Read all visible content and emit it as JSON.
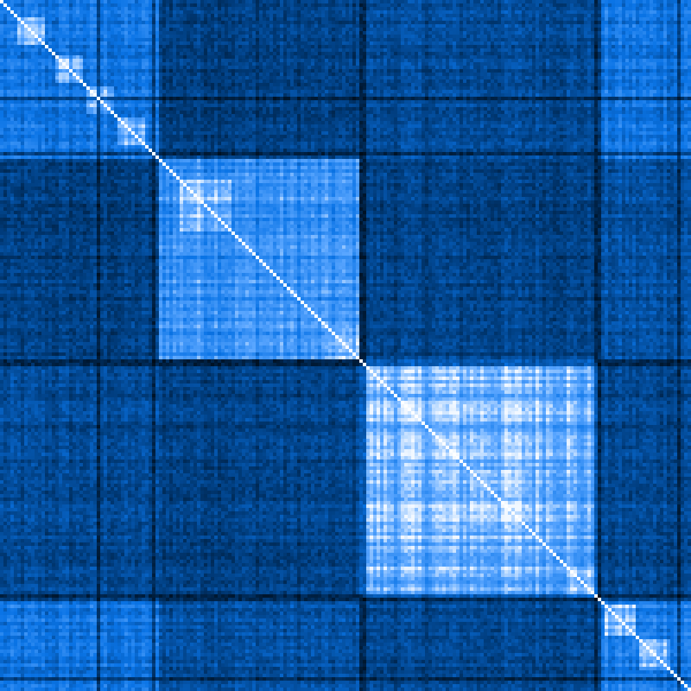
{
  "chart_data": {
    "type": "heatmap",
    "title": "",
    "xlabel": "",
    "ylabel": "",
    "symmetric": true,
    "grid": false,
    "legend": "none",
    "value_range": [
      0,
      1
    ],
    "colorscale": [
      "#000000",
      "#003a78",
      "#0a74e6",
      "#5aa6ff",
      "#ffffff"
    ],
    "n": 200,
    "clusters": [
      {
        "start": 0,
        "end": 46,
        "within": 0.55
      },
      {
        "start": 46,
        "end": 104,
        "within": 0.72
      },
      {
        "start": 104,
        "end": 173,
        "within": 0.82
      },
      {
        "start": 173,
        "end": 200,
        "within": 0.6
      }
    ],
    "between": [
      [
        0.55,
        0.3,
        0.35,
        0.55
      ],
      [
        0.3,
        0.72,
        0.32,
        0.38
      ],
      [
        0.35,
        0.32,
        0.82,
        0.34
      ],
      [
        0.55,
        0.38,
        0.34,
        0.6
      ]
    ],
    "sub_blocks": [
      {
        "start": 5,
        "end": 13,
        "value": 0.85
      },
      {
        "start": 16,
        "end": 24,
        "value": 0.85
      },
      {
        "start": 25,
        "end": 33,
        "value": 0.82
      },
      {
        "start": 34,
        "end": 42,
        "value": 0.82
      },
      {
        "start": 52,
        "end": 67,
        "value": 0.95
      },
      {
        "start": 95,
        "end": 104,
        "value": 0.85
      },
      {
        "start": 106,
        "end": 165,
        "value": 0.9
      },
      {
        "start": 136,
        "end": 152,
        "value": 0.95
      },
      {
        "start": 165,
        "end": 173,
        "value": 0.9
      },
      {
        "start": 175,
        "end": 184,
        "value": 0.88
      },
      {
        "start": 185,
        "end": 194,
        "value": 0.88
      }
    ],
    "dark_bands": [
      28,
      44,
      104,
      105,
      172,
      173,
      196
    ],
    "diagonal_value": 1.0
  }
}
